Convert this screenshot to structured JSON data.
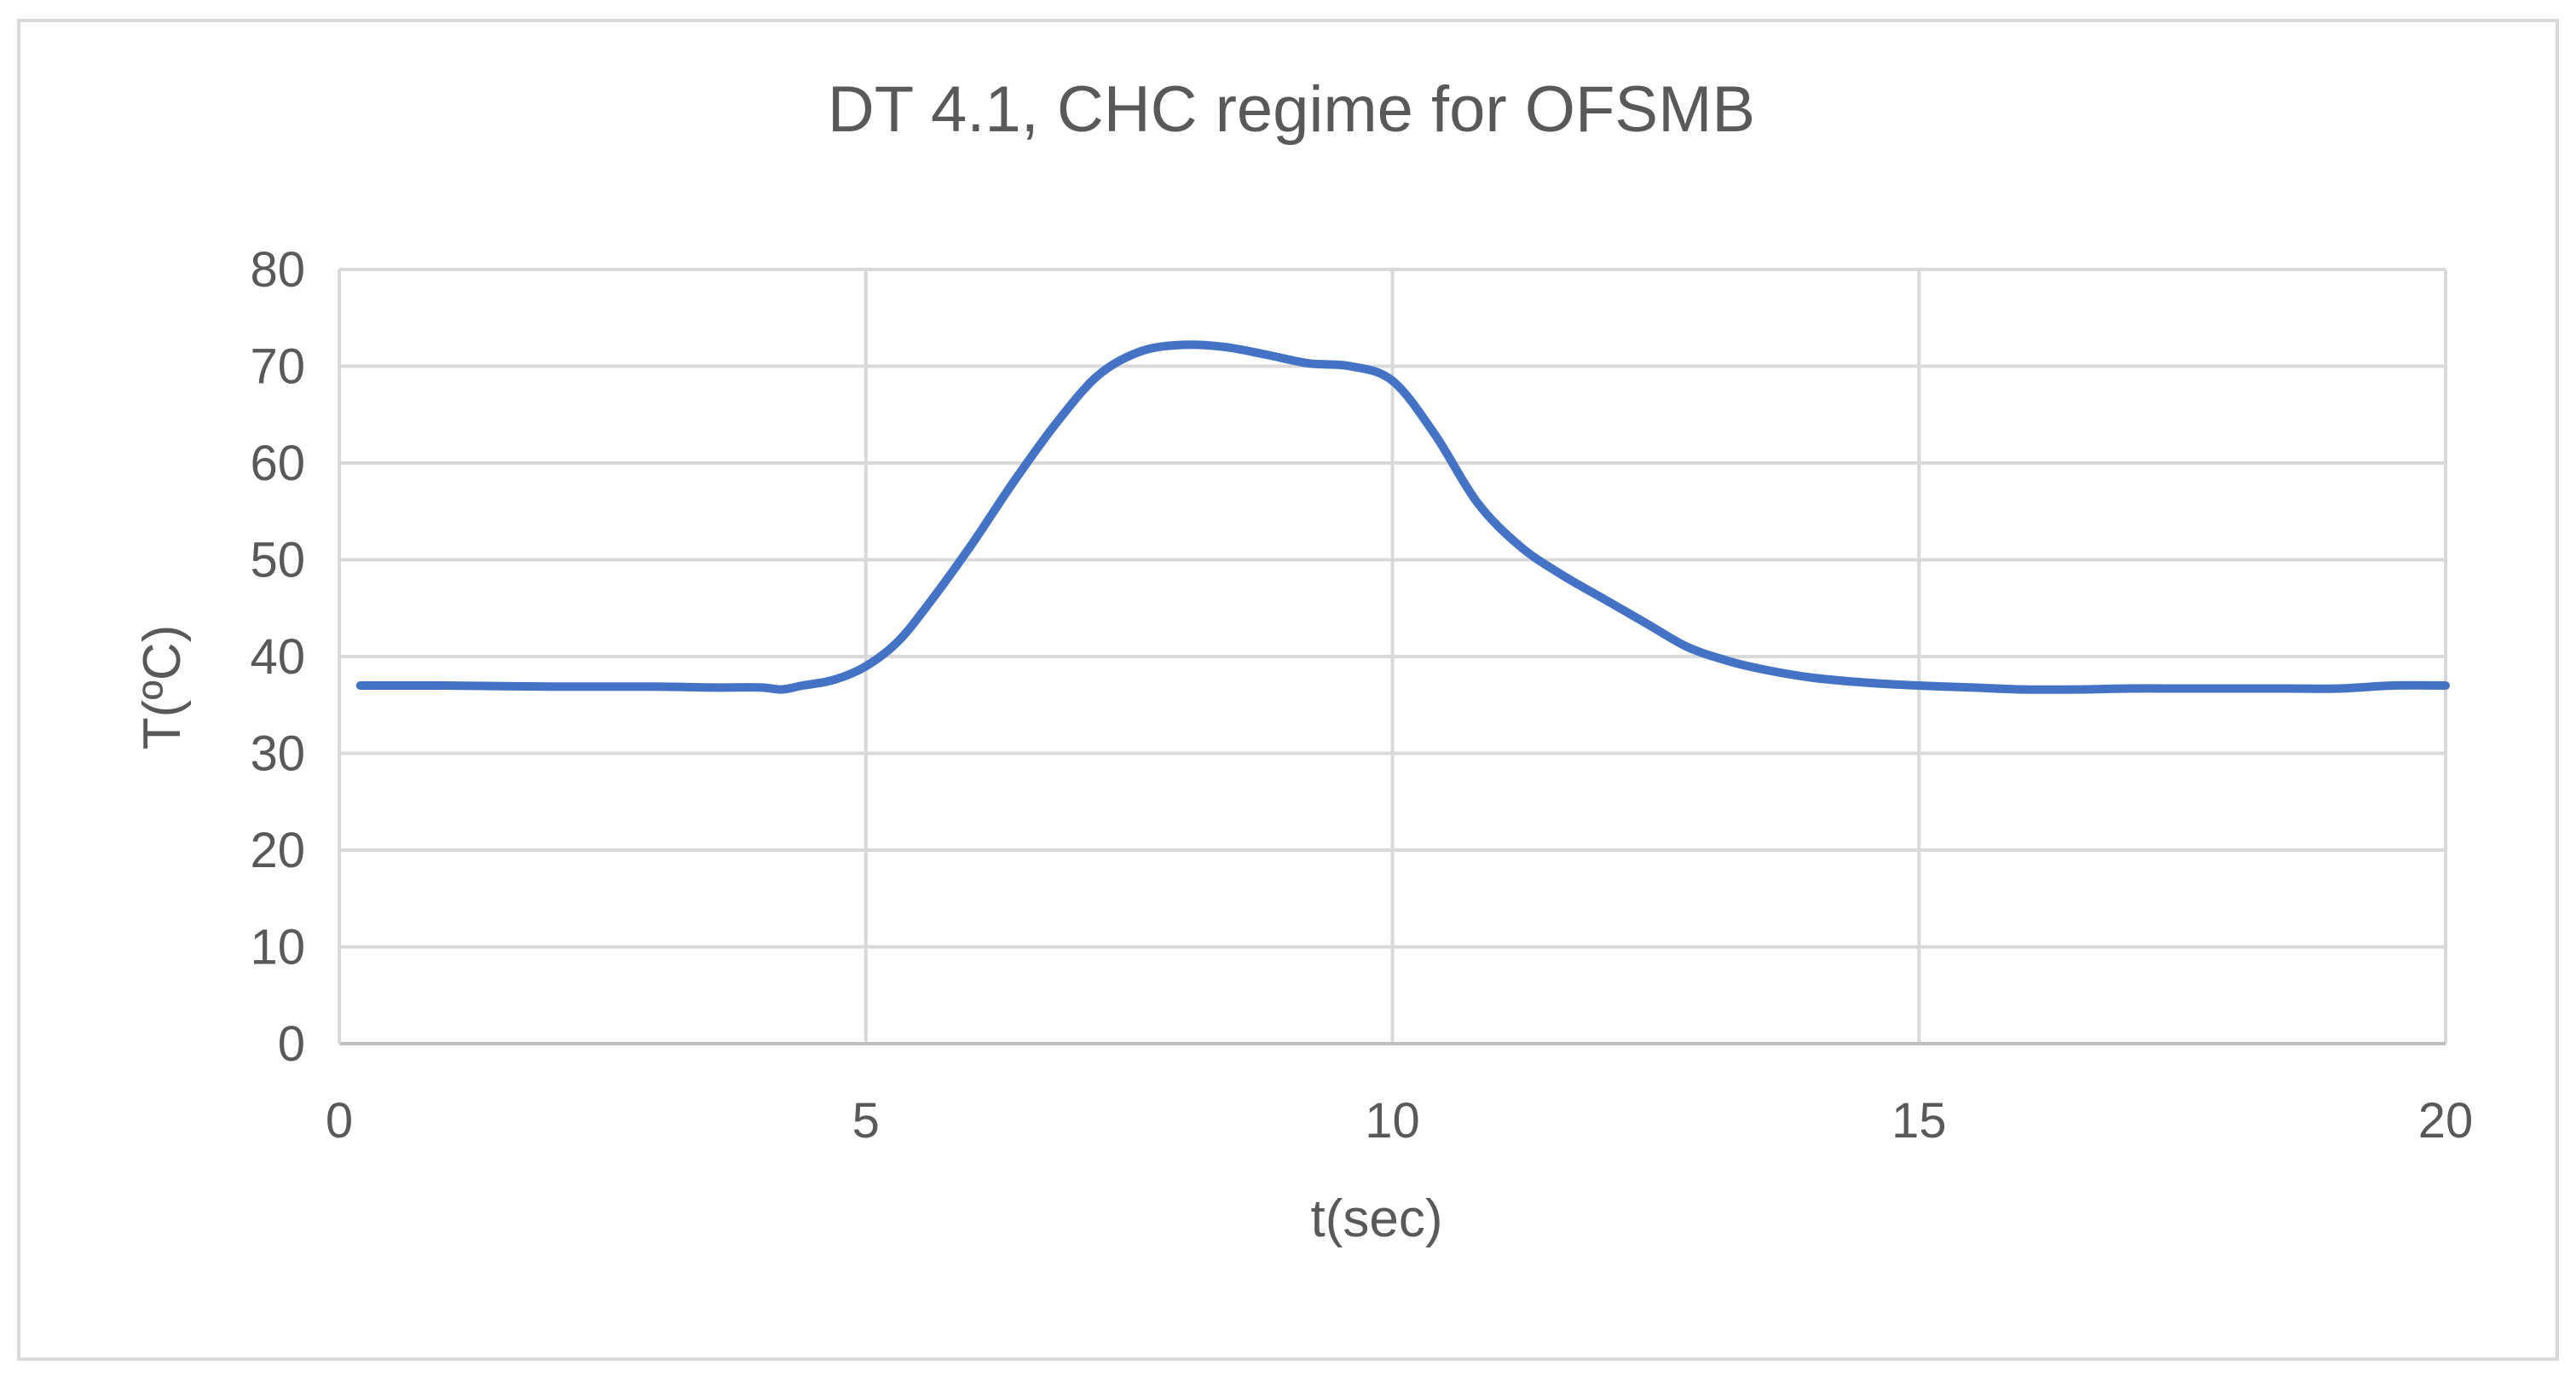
{
  "chart_data": {
    "type": "line",
    "title": "DT 4.1, CHC regime for OFSMB",
    "xlabel": "t(sec)",
    "ylabel": "T(ºC)",
    "xlim": [
      0,
      20
    ],
    "ylim": [
      0,
      80
    ],
    "x_ticks": [
      "0",
      "5",
      "10",
      "15",
      "20"
    ],
    "y_ticks": [
      "0",
      "10",
      "20",
      "30",
      "40",
      "50",
      "60",
      "70",
      "80"
    ],
    "grid": true,
    "legend": "none",
    "line_color": "#4472c4",
    "series": [
      {
        "x": [
          0.2,
          1,
          2,
          3,
          3.5,
          4,
          4.2,
          4.4,
          4.7,
          5,
          5.3,
          5.6,
          6,
          6.4,
          6.8,
          7.2,
          7.6,
          8,
          8.4,
          8.8,
          9.2,
          9.6,
          10,
          10.4,
          10.8,
          11.2,
          11.6,
          12,
          12.4,
          12.8,
          13.2,
          13.6,
          14,
          14.5,
          15,
          15.5,
          16,
          16.5,
          17,
          17.5,
          18,
          18.5,
          19,
          19.5,
          20
        ],
        "values": [
          37,
          37,
          36.9,
          36.9,
          36.8,
          36.8,
          36.6,
          37,
          37.6,
          39,
          41.5,
          45.5,
          51.5,
          58,
          64,
          69,
          71.5,
          72.2,
          72,
          71.2,
          70.3,
          70,
          68.5,
          63,
          56,
          51.5,
          48.5,
          46,
          43.5,
          41,
          39.5,
          38.5,
          37.8,
          37.3,
          37,
          36.8,
          36.6,
          36.6,
          36.7,
          36.7,
          36.7,
          36.7,
          36.7,
          37,
          37
        ]
      }
    ]
  }
}
